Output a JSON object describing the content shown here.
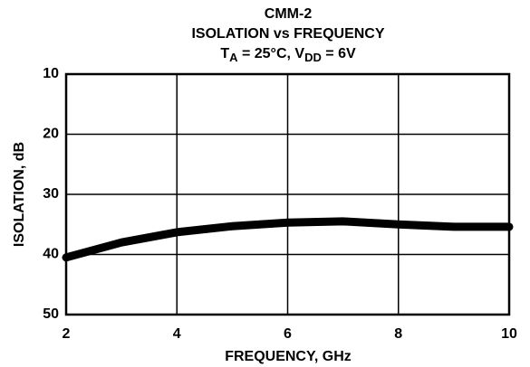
{
  "chart_data": {
    "type": "line",
    "title": "CMM-2",
    "subtitle": "ISOLATION vs FREQUENCY",
    "conditions": [
      "T",
      "A",
      " = 25°C, V",
      "DD",
      " = 6V"
    ],
    "xlabel": "FREQUENCY, GHz",
    "ylabel": "ISOLATION, dB",
    "x": [
      2,
      3,
      4,
      5,
      6,
      7,
      8,
      9,
      10
    ],
    "series": [
      {
        "color": "#000000",
        "values": [
          40.5,
          38,
          36.3,
          35.3,
          34.7,
          34.5,
          35,
          35.4,
          35.4
        ]
      }
    ],
    "xlim": [
      2,
      10
    ],
    "xticks": [
      2,
      4,
      6,
      8,
      10
    ],
    "ylim": [
      50,
      10
    ],
    "yticks": [
      10,
      20,
      30,
      40,
      50
    ],
    "grid": true
  }
}
